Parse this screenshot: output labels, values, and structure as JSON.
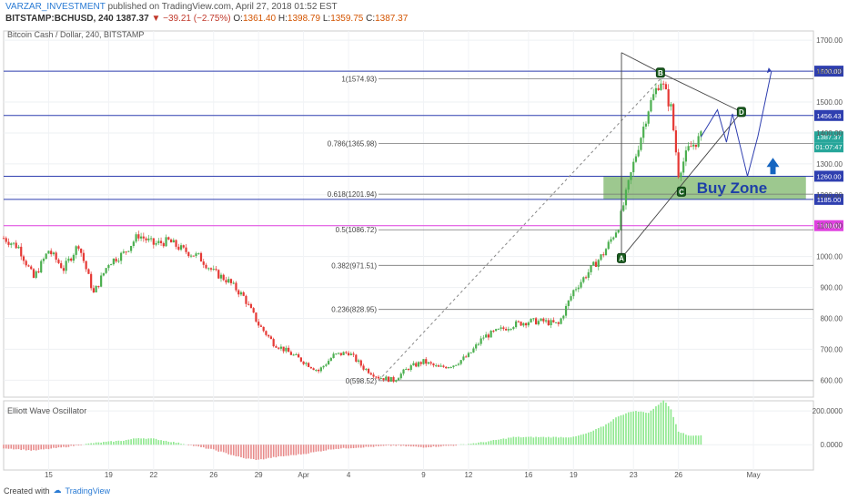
{
  "header": {
    "user": "VARZAR_INVESTMENT",
    "published": "published on TradingView.com, April 27, 2018 01:52 EST",
    "symbol": "BITSTAMP:BCHUSD, 240",
    "last": "1387.37",
    "change": "▼ −39.21 (−2.75%)",
    "open_label": "O:",
    "open": "1361.40",
    "high_label": "H:",
    "high": "1398.79",
    "low_label": "L:",
    "low": "1359.75",
    "close_label": "C:",
    "close": "1387.37"
  },
  "chart_title": "Bitcoin Cash / Dollar, 240, BITSTAMP",
  "oscillator_title": "Elliott Wave Oscillator",
  "footer": {
    "created_with": "Created with",
    "brand": "TradingView"
  },
  "chart_data": {
    "type": "candlestick",
    "y_ticks": [
      600,
      700,
      800,
      900,
      1000,
      1100,
      1200,
      1300,
      1400,
      1500,
      1600,
      1700
    ],
    "y_tick_labels": [
      "600.00",
      "700.00",
      "800.00",
      "900.00",
      "1000.00",
      "1100.00",
      "1200.00",
      "1300.00",
      "1400.00",
      "1500.00",
      "1600.00",
      "1700.00"
    ],
    "ylim": [
      545,
      1730
    ],
    "osc_ticks": [
      {
        "value": 200,
        "label": "200.0000"
      },
      {
        "value": 0,
        "label": "0.0000"
      }
    ],
    "osc_ylim": [
      -150,
      260
    ],
    "x_ticks": [
      {
        "label": "15",
        "day": 3
      },
      {
        "label": "19",
        "day": 7
      },
      {
        "label": "22",
        "day": 10
      },
      {
        "label": "26",
        "day": 14
      },
      {
        "label": "29",
        "day": 17
      },
      {
        "label": "Apr",
        "day": 20
      },
      {
        "label": "4",
        "day": 23
      },
      {
        "label": "9",
        "day": 28
      },
      {
        "label": "12",
        "day": 31
      },
      {
        "label": "16",
        "day": 35
      },
      {
        "label": "19",
        "day": 38
      },
      {
        "label": "23",
        "day": 42
      },
      {
        "label": "26",
        "day": 45
      },
      {
        "label": "May",
        "day": 50
      }
    ],
    "xlim_days": [
      0,
      54
    ],
    "price_path": [
      [
        0,
        1060
      ],
      [
        1,
        1030
      ],
      [
        2,
        930
      ],
      [
        3,
        1020
      ],
      [
        4,
        960
      ],
      [
        5,
        1040
      ],
      [
        6,
        880
      ],
      [
        7,
        980
      ],
      [
        8,
        1010
      ],
      [
        9,
        1070
      ],
      [
        10,
        1040
      ],
      [
        11,
        1050
      ],
      [
        12,
        1020
      ],
      [
        13,
        1000
      ],
      [
        14,
        950
      ],
      [
        15,
        920
      ],
      [
        16,
        870
      ],
      [
        17,
        780
      ],
      [
        18,
        720
      ],
      [
        19,
        690
      ],
      [
        20,
        660
      ],
      [
        21,
        630
      ],
      [
        22,
        680
      ],
      [
        23,
        690
      ],
      [
        24,
        640
      ],
      [
        25,
        610
      ],
      [
        26,
        600
      ],
      [
        27,
        640
      ],
      [
        28,
        660
      ],
      [
        29,
        640
      ],
      [
        30,
        650
      ],
      [
        31,
        680
      ],
      [
        32,
        740
      ],
      [
        33,
        760
      ],
      [
        34,
        780
      ],
      [
        35,
        790
      ],
      [
        36,
        790
      ],
      [
        37,
        780
      ],
      [
        38,
        890
      ],
      [
        39,
        950
      ],
      [
        40,
        1010
      ],
      [
        41,
        1100
      ],
      [
        42,
        1300
      ],
      [
        43,
        1480
      ],
      [
        43.8,
        1575
      ],
      [
        44.5,
        1480
      ],
      [
        45,
        1270
      ],
      [
        45.7,
        1350
      ],
      [
        46.5,
        1387
      ]
    ],
    "osc_path": [
      [
        0,
        -20
      ],
      [
        2,
        -35
      ],
      [
        4,
        -15
      ],
      [
        6,
        10
      ],
      [
        8,
        25
      ],
      [
        9,
        40
      ],
      [
        10,
        35
      ],
      [
        12,
        5
      ],
      [
        14,
        -30
      ],
      [
        16,
        -80
      ],
      [
        17,
        -90
      ],
      [
        18,
        -75
      ],
      [
        20,
        -55
      ],
      [
        22,
        -25
      ],
      [
        24,
        -15
      ],
      [
        26,
        -5
      ],
      [
        28,
        -15
      ],
      [
        30,
        -5
      ],
      [
        32,
        15
      ],
      [
        34,
        45
      ],
      [
        36,
        45
      ],
      [
        38,
        45
      ],
      [
        39,
        70
      ],
      [
        40,
        110
      ],
      [
        41,
        170
      ],
      [
        42,
        200
      ],
      [
        43,
        190
      ],
      [
        43.5,
        225
      ],
      [
        44,
        265
      ],
      [
        44.5,
        210
      ],
      [
        45,
        80
      ],
      [
        45.6,
        55
      ],
      [
        46.5,
        55
      ]
    ],
    "fib_levels": [
      {
        "label": "1(1574.93)",
        "value": 1574.93
      },
      {
        "label": "0.786(1365.98)",
        "value": 1365.98
      },
      {
        "label": "0.618(1201.94)",
        "value": 1201.94
      },
      {
        "label": "0.5(1086.72)",
        "value": 1086.72
      },
      {
        "label": "0.382(971.51)",
        "value": 971.51
      },
      {
        "label": "0.236(828.95)",
        "value": 828.95
      },
      {
        "label": "0(598.52)",
        "value": 598.52
      }
    ],
    "h_lines": [
      {
        "value": 1600,
        "label": "1600.00",
        "color": "#2f3fb0"
      },
      {
        "value": 1456.43,
        "label": "1456.43",
        "color": "#2f3fb0"
      },
      {
        "value": 1260,
        "label": "1260.00",
        "color": "#2f3fb0"
      },
      {
        "value": 1185,
        "label": "1185.00",
        "color": "#2f3fb0"
      },
      {
        "value": 1100,
        "label": "1100.00",
        "color": "#e040e0"
      }
    ],
    "price_box_labels": {
      "last": "1387.37",
      "countdown": "01:07:47"
    },
    "waves": [
      {
        "label": "A",
        "day": 41.2,
        "value": 995
      },
      {
        "label": "B",
        "day": 43.8,
        "value": 1595
      },
      {
        "label": "C",
        "day": 45.2,
        "value": 1210
      },
      {
        "label": "D",
        "day": 49.2,
        "value": 1468
      }
    ],
    "buy_zone": {
      "label": "Buy Zone",
      "day_from": 40,
      "day_to": 53.5,
      "from": 1185,
      "to": 1260
    },
    "colors": {
      "up": "#4caf50",
      "down": "#e53935",
      "osc_up": "#8ee88e",
      "osc_down": "#e88a8a",
      "fib": "#777777",
      "path": "#2f3fb0"
    }
  }
}
